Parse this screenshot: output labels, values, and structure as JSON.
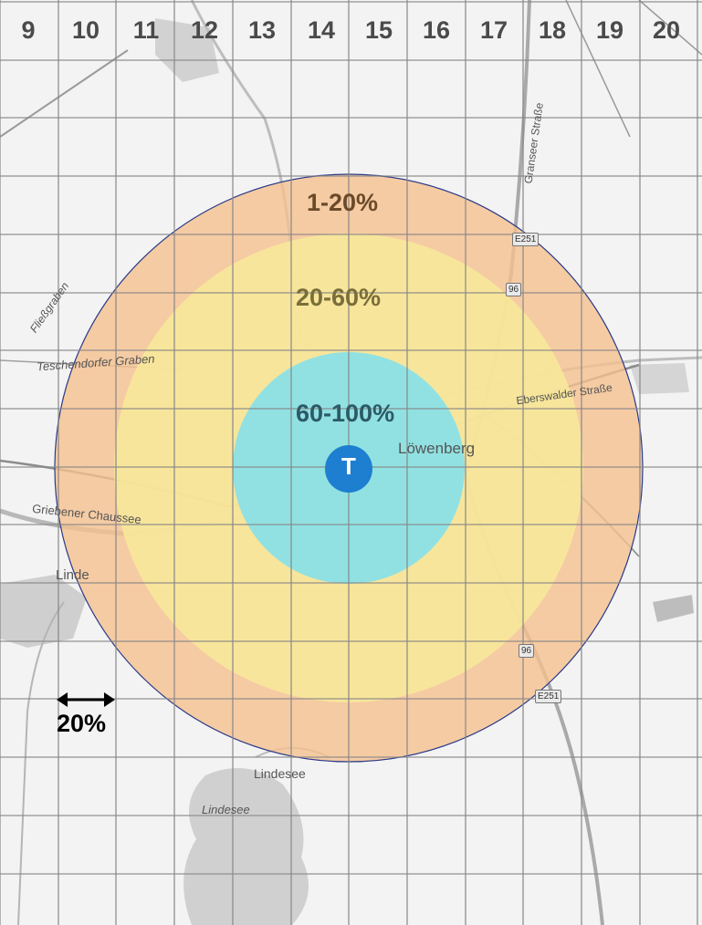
{
  "columns": [
    "9",
    "10",
    "11",
    "12",
    "13",
    "14",
    "15",
    "16",
    "17",
    "18",
    "19",
    "20"
  ],
  "rings": [
    {
      "label": "1-20%",
      "color": "#f5c08f"
    },
    {
      "label": "20-60%",
      "color": "#f7ea9a"
    },
    {
      "label": "60-100%",
      "color": "#7fe0ee"
    }
  ],
  "ring_outline_color": "#2a3a8a",
  "marker": {
    "label": "T",
    "color": "#1e7fd0"
  },
  "scale_label": "20%",
  "places": {
    "lowenberg": "Löwenberg",
    "linde": "Linde",
    "lindesee_town": "Lindesee",
    "lindesee_lake": "Lindesee",
    "fliessgraben": "Fließgraben",
    "teschendorfer": "Teschendorfer Graben",
    "griebener": "Griebener Chaussee",
    "eberswalder": "Eberswalder Straße",
    "granseer": "Granseer Straße"
  },
  "road_badges": {
    "e251_top": "E251",
    "b96_top": "96",
    "b96_bottom": "96",
    "e251_bottom": "E251"
  }
}
